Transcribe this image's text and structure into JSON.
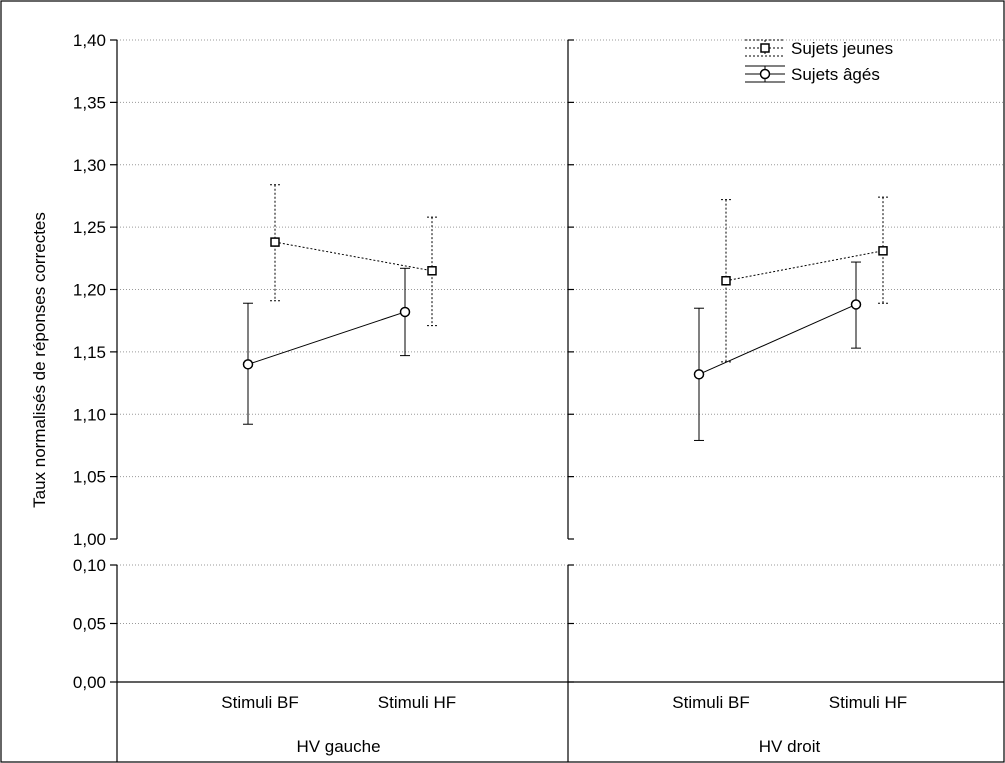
{
  "chart_data": {
    "type": "line",
    "ylabel": "Taux normalisés de réponses correctes",
    "y_ticks_upper": [
      "1,00",
      "1,05",
      "1,10",
      "1,15",
      "1,20",
      "1,25",
      "1,30",
      "1,35",
      "1,40"
    ],
    "y_ticks_lower": [
      "0,00",
      "0,05",
      "0,10"
    ],
    "ylim_upper": [
      1.0,
      1.4
    ],
    "ylim_lower": [
      0.0,
      0.1
    ],
    "axis_break": true,
    "grid": true,
    "legend_position": "top-right",
    "categories": [
      "Stimuli BF",
      "Stimuli HF"
    ],
    "panels": [
      {
        "label": "HV gauche",
        "series": [
          {
            "name": "Sujets jeunes",
            "values": [
              1.238,
              1.215
            ],
            "err_low": [
              1.191,
              1.171
            ],
            "err_high": [
              1.284,
              1.258
            ]
          },
          {
            "name": "Sujets âgés",
            "values": [
              1.14,
              1.182
            ],
            "err_low": [
              1.092,
              1.147
            ],
            "err_high": [
              1.189,
              1.217
            ]
          }
        ]
      },
      {
        "label": "HV droit",
        "series": [
          {
            "name": "Sujets jeunes",
            "values": [
              1.207,
              1.231
            ],
            "err_low": [
              1.142,
              1.189
            ],
            "err_high": [
              1.272,
              1.274
            ]
          },
          {
            "name": "Sujets âgés",
            "values": [
              1.132,
              1.188
            ],
            "err_low": [
              1.079,
              1.153
            ],
            "err_high": [
              1.185,
              1.222
            ]
          }
        ]
      }
    ]
  },
  "legend": {
    "items": [
      {
        "label": "Sujets jeunes",
        "marker": "square-icon",
        "line": "dotted"
      },
      {
        "label": "Sujets âgés",
        "marker": "circle-icon",
        "line": "solid"
      }
    ]
  }
}
